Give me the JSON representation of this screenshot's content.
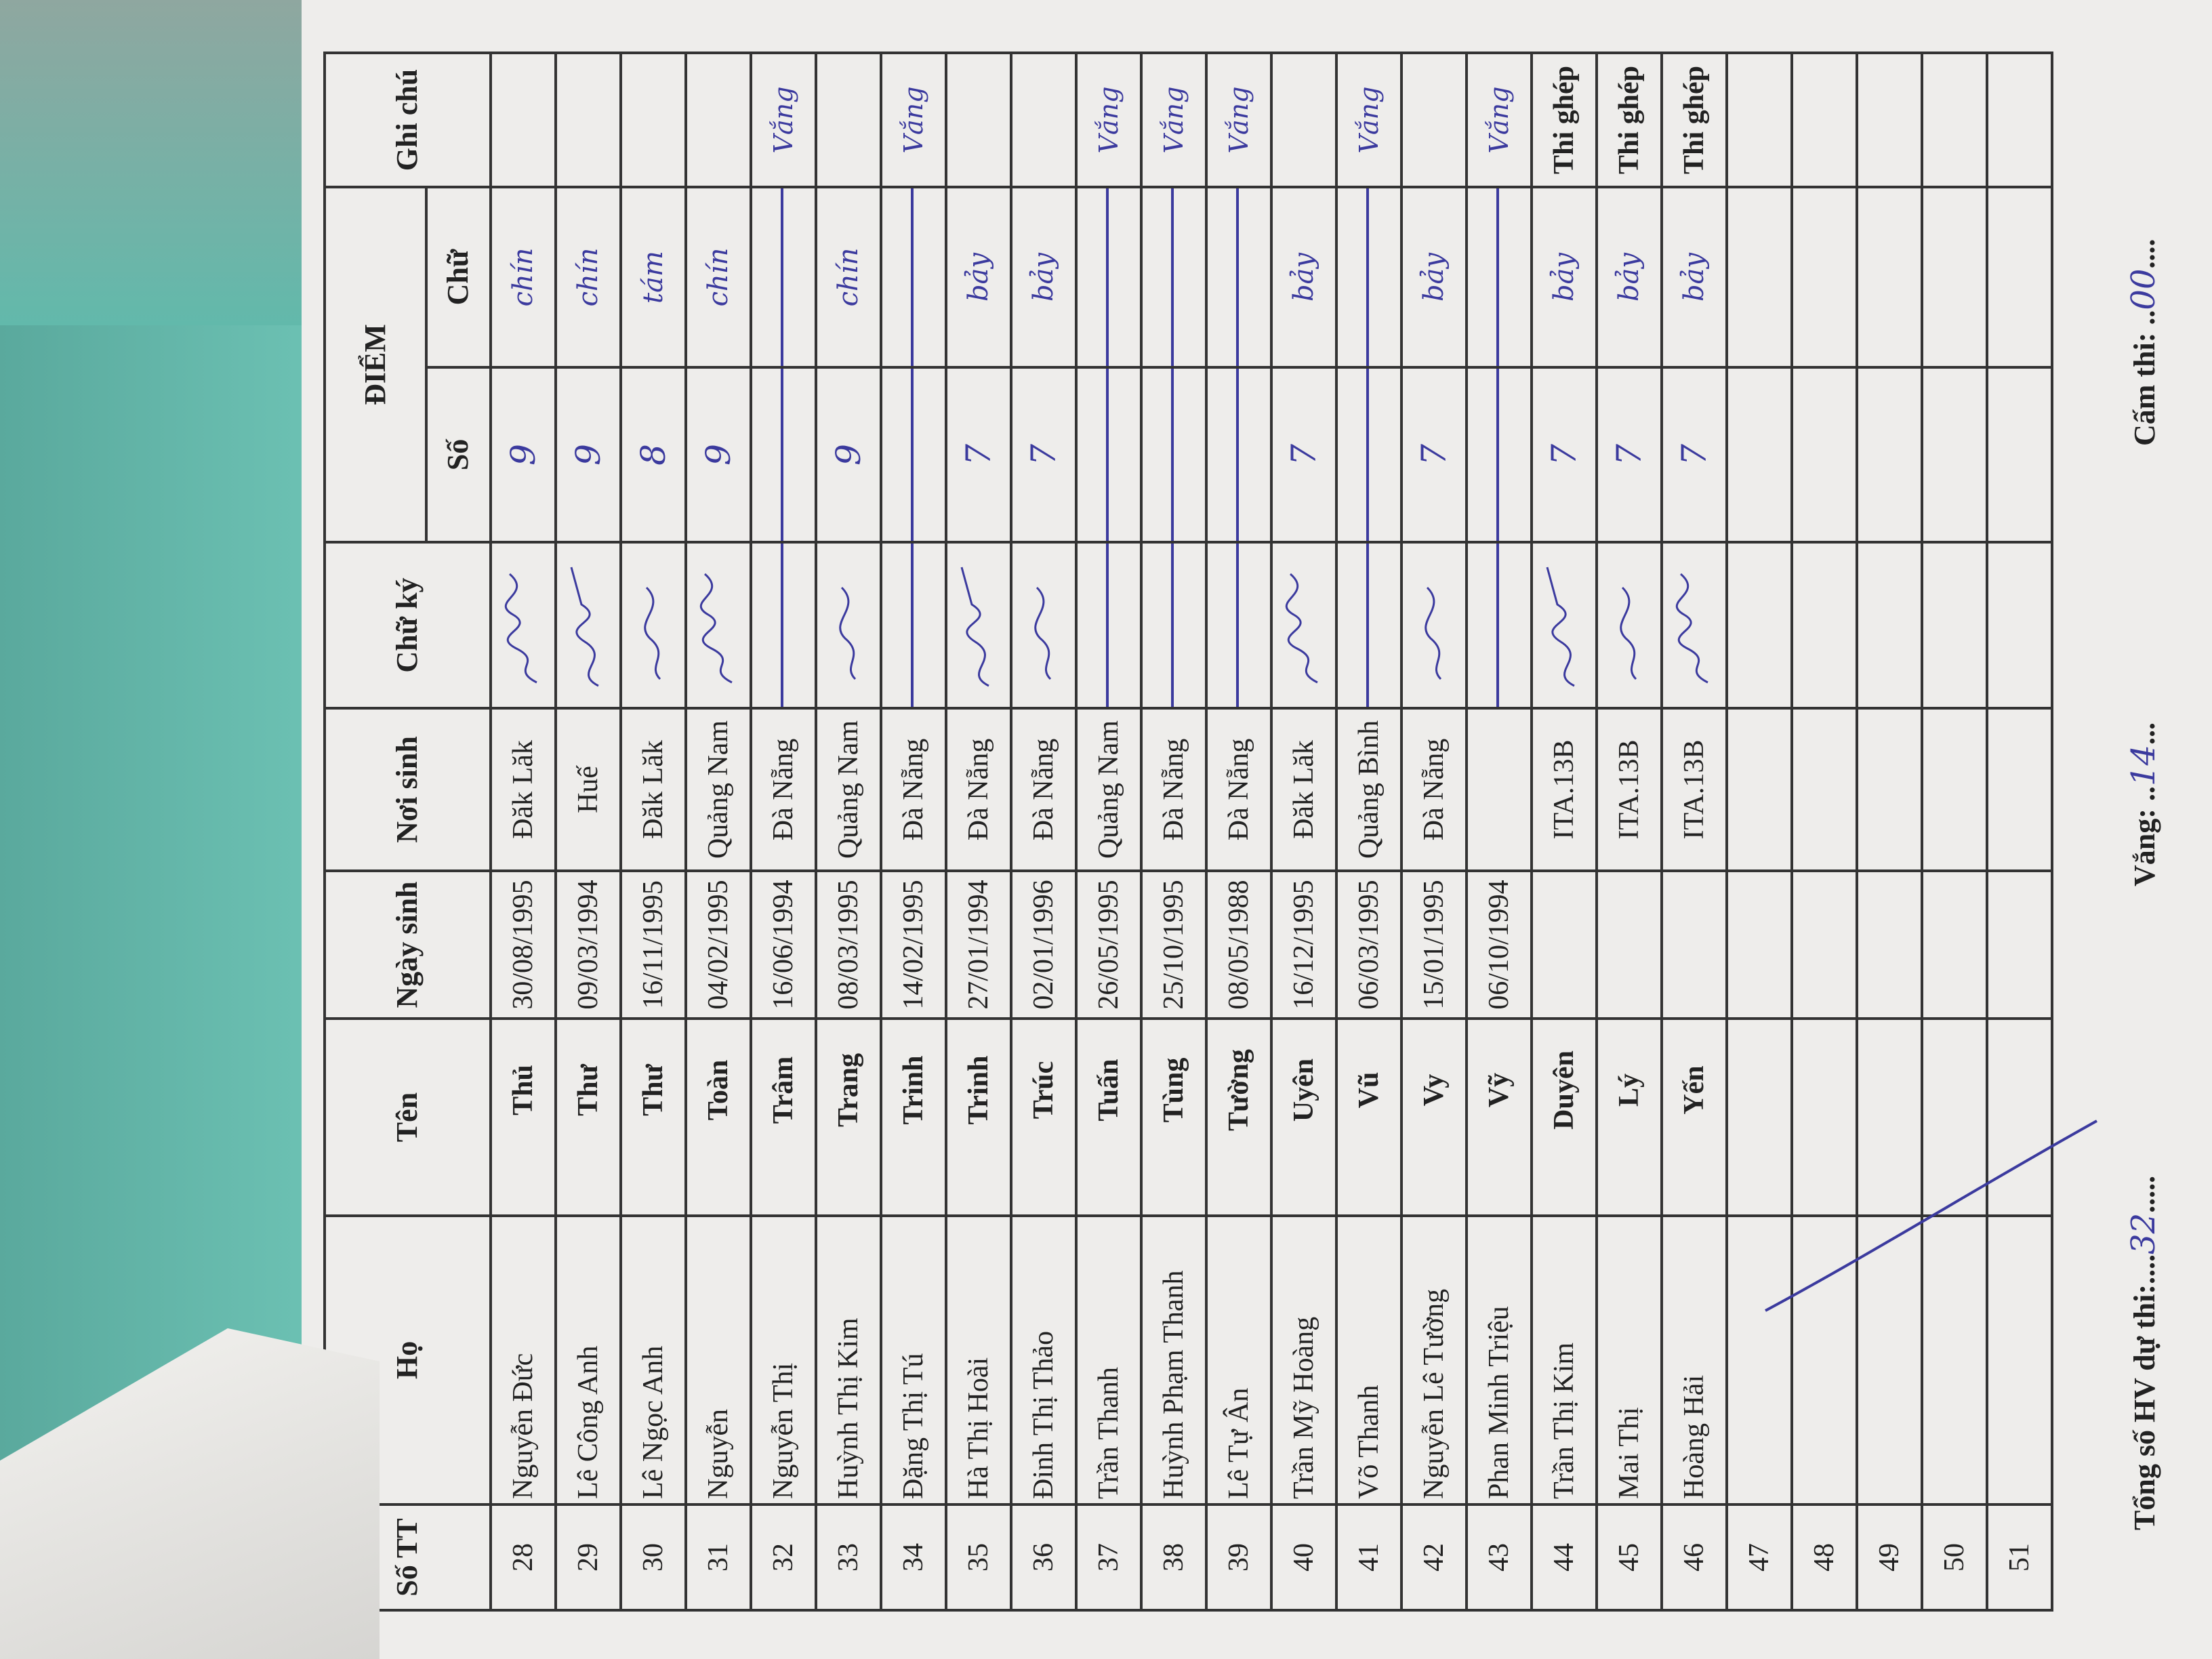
{
  "header": {
    "stt": "Số TT",
    "ho": "Họ",
    "ten": "Tên",
    "ngay_sinh": "Ngày sinh",
    "noi_sinh": "Nơi sinh",
    "chu_ky": "Chữ ký",
    "diem": "ĐIỂM",
    "diem_so": "Số",
    "diem_chu": "Chữ",
    "ghi_chu": "Ghi chú"
  },
  "rows": [
    {
      "stt": "28",
      "ho": "Nguyễn Đức",
      "ten": "Thủ",
      "ngay_sinh": "30/08/1995",
      "noi_sinh": "Đăk Lăk",
      "signed": true,
      "so": "9",
      "chu": "chín",
      "ghi_chu": ""
    },
    {
      "stt": "29",
      "ho": "Lê Công Anh",
      "ten": "Thư",
      "ngay_sinh": "09/03/1994",
      "noi_sinh": "Huế",
      "signed": true,
      "so": "9",
      "chu": "chín",
      "ghi_chu": ""
    },
    {
      "stt": "30",
      "ho": "Lê Ngọc Anh",
      "ten": "Thư",
      "ngay_sinh": "16/11/1995",
      "noi_sinh": "Đăk Lăk",
      "signed": true,
      "so": "8",
      "chu": "tám",
      "ghi_chu": ""
    },
    {
      "stt": "31",
      "ho": "Nguyễn",
      "ten": "Toàn",
      "ngay_sinh": "04/02/1995",
      "noi_sinh": "Quảng Nam",
      "signed": true,
      "so": "9",
      "chu": "chín",
      "ghi_chu": ""
    },
    {
      "stt": "32",
      "ho": "Nguyễn Thị",
      "ten": "Trâm",
      "ngay_sinh": "16/06/1994",
      "noi_sinh": "Đà Nẵng",
      "signed": false,
      "so": "",
      "chu": "",
      "ghi_chu": "Vắng"
    },
    {
      "stt": "33",
      "ho": "Huỳnh Thị Kim",
      "ten": "Trang",
      "ngay_sinh": "08/03/1995",
      "noi_sinh": "Quảng Nam",
      "signed": true,
      "so": "9",
      "chu": "chín",
      "ghi_chu": ""
    },
    {
      "stt": "34",
      "ho": "Đặng Thị Tú",
      "ten": "Trinh",
      "ngay_sinh": "14/02/1995",
      "noi_sinh": "Đà Nẵng",
      "signed": false,
      "so": "",
      "chu": "",
      "ghi_chu": "Vắng"
    },
    {
      "stt": "35",
      "ho": "Hà Thị Hoài",
      "ten": "Trinh",
      "ngay_sinh": "27/01/1994",
      "noi_sinh": "Đà Nẵng",
      "signed": true,
      "so": "7",
      "chu": "bảy",
      "ghi_chu": ""
    },
    {
      "stt": "36",
      "ho": "Đinh Thị Thảo",
      "ten": "Trúc",
      "ngay_sinh": "02/01/1996",
      "noi_sinh": "Đà Nẵng",
      "signed": true,
      "so": "7",
      "chu": "bảy",
      "ghi_chu": ""
    },
    {
      "stt": "37",
      "ho": "Trần Thanh",
      "ten": "Tuấn",
      "ngay_sinh": "26/05/1995",
      "noi_sinh": "Quảng Nam",
      "signed": false,
      "so": "",
      "chu": "",
      "ghi_chu": "Vắng"
    },
    {
      "stt": "38",
      "ho": "Huỳnh Phạm Thanh",
      "ten": "Tùng",
      "ngay_sinh": "25/10/1995",
      "noi_sinh": "Đà Nẵng",
      "signed": false,
      "so": "",
      "chu": "",
      "ghi_chu": "Vắng"
    },
    {
      "stt": "39",
      "ho": "Lê Tự Ân",
      "ten": "Tường",
      "ngay_sinh": "08/05/1988",
      "noi_sinh": "Đà Nẵng",
      "signed": false,
      "so": "",
      "chu": "",
      "ghi_chu": "Vắng"
    },
    {
      "stt": "40",
      "ho": "Trần Mỹ Hoàng",
      "ten": "Uyên",
      "ngay_sinh": "16/12/1995",
      "noi_sinh": "Đăk Lăk",
      "signed": true,
      "so": "7",
      "chu": "bảy",
      "ghi_chu": ""
    },
    {
      "stt": "41",
      "ho": "Võ Thanh",
      "ten": "Vũ",
      "ngay_sinh": "06/03/1995",
      "noi_sinh": "Quảng Bình",
      "signed": false,
      "so": "",
      "chu": "",
      "ghi_chu": "Vắng"
    },
    {
      "stt": "42",
      "ho": "Nguyễn Lê Tường",
      "ten": "Vy",
      "ngay_sinh": "15/01/1995",
      "noi_sinh": "Đà Nẵng",
      "signed": true,
      "so": "7",
      "chu": "bảy",
      "ghi_chu": ""
    },
    {
      "stt": "43",
      "ho": "Phan Minh Triệu",
      "ten": "Vỹ",
      "ngay_sinh": "06/10/1994",
      "noi_sinh": "",
      "signed": false,
      "so": "",
      "chu": "",
      "ghi_chu": "Vắng"
    },
    {
      "stt": "44",
      "ho": "Trần Thị Kim",
      "ten": "Duyên",
      "ngay_sinh": "",
      "noi_sinh": "ITA.13B",
      "signed": true,
      "so": "7",
      "chu": "bảy",
      "ghi_chu": "Thi ghép"
    },
    {
      "stt": "45",
      "ho": "Mai Thị",
      "ten": "Lý",
      "ngay_sinh": "",
      "noi_sinh": "ITA.13B",
      "signed": true,
      "so": "7",
      "chu": "bảy",
      "ghi_chu": "Thi ghép"
    },
    {
      "stt": "46",
      "ho": "Hoàng Hải",
      "ten": "Yến",
      "ngay_sinh": "",
      "noi_sinh": "ITA.13B",
      "signed": true,
      "so": "7",
      "chu": "bảy",
      "ghi_chu": "Thi ghép"
    },
    {
      "stt": "47",
      "ho": "",
      "ten": "",
      "ngay_sinh": "",
      "noi_sinh": "",
      "signed": false,
      "so": "",
      "chu": "",
      "ghi_chu": ""
    },
    {
      "stt": "48",
      "ho": "",
      "ten": "",
      "ngay_sinh": "",
      "noi_sinh": "",
      "signed": false,
      "so": "",
      "chu": "",
      "ghi_chu": ""
    },
    {
      "stt": "49",
      "ho": "",
      "ten": "",
      "ngay_sinh": "",
      "noi_sinh": "",
      "signed": false,
      "so": "",
      "chu": "",
      "ghi_chu": ""
    },
    {
      "stt": "50",
      "ho": "",
      "ten": "",
      "ngay_sinh": "",
      "noi_sinh": "",
      "signed": false,
      "so": "",
      "chu": "",
      "ghi_chu": ""
    },
    {
      "stt": "51",
      "ho": "",
      "ten": "",
      "ngay_sinh": "",
      "noi_sinh": "",
      "signed": false,
      "so": "",
      "chu": "",
      "ghi_chu": ""
    }
  ],
  "footer": {
    "tong_so_label": "Tổng số HV dự thi:....",
    "tong_so_value": "32",
    "tong_so_tail": ".....",
    "vang_label": "Vắng: ..",
    "vang_value": "14",
    "vang_tail": "...",
    "cam_thi_label": "Cấm thi: ..",
    "cam_thi_value": "00",
    "cam_thi_tail": "...."
  },
  "colors": {
    "ink": "#3b3a9e",
    "background": "#62b9ab",
    "paper": "#eeedeb"
  }
}
